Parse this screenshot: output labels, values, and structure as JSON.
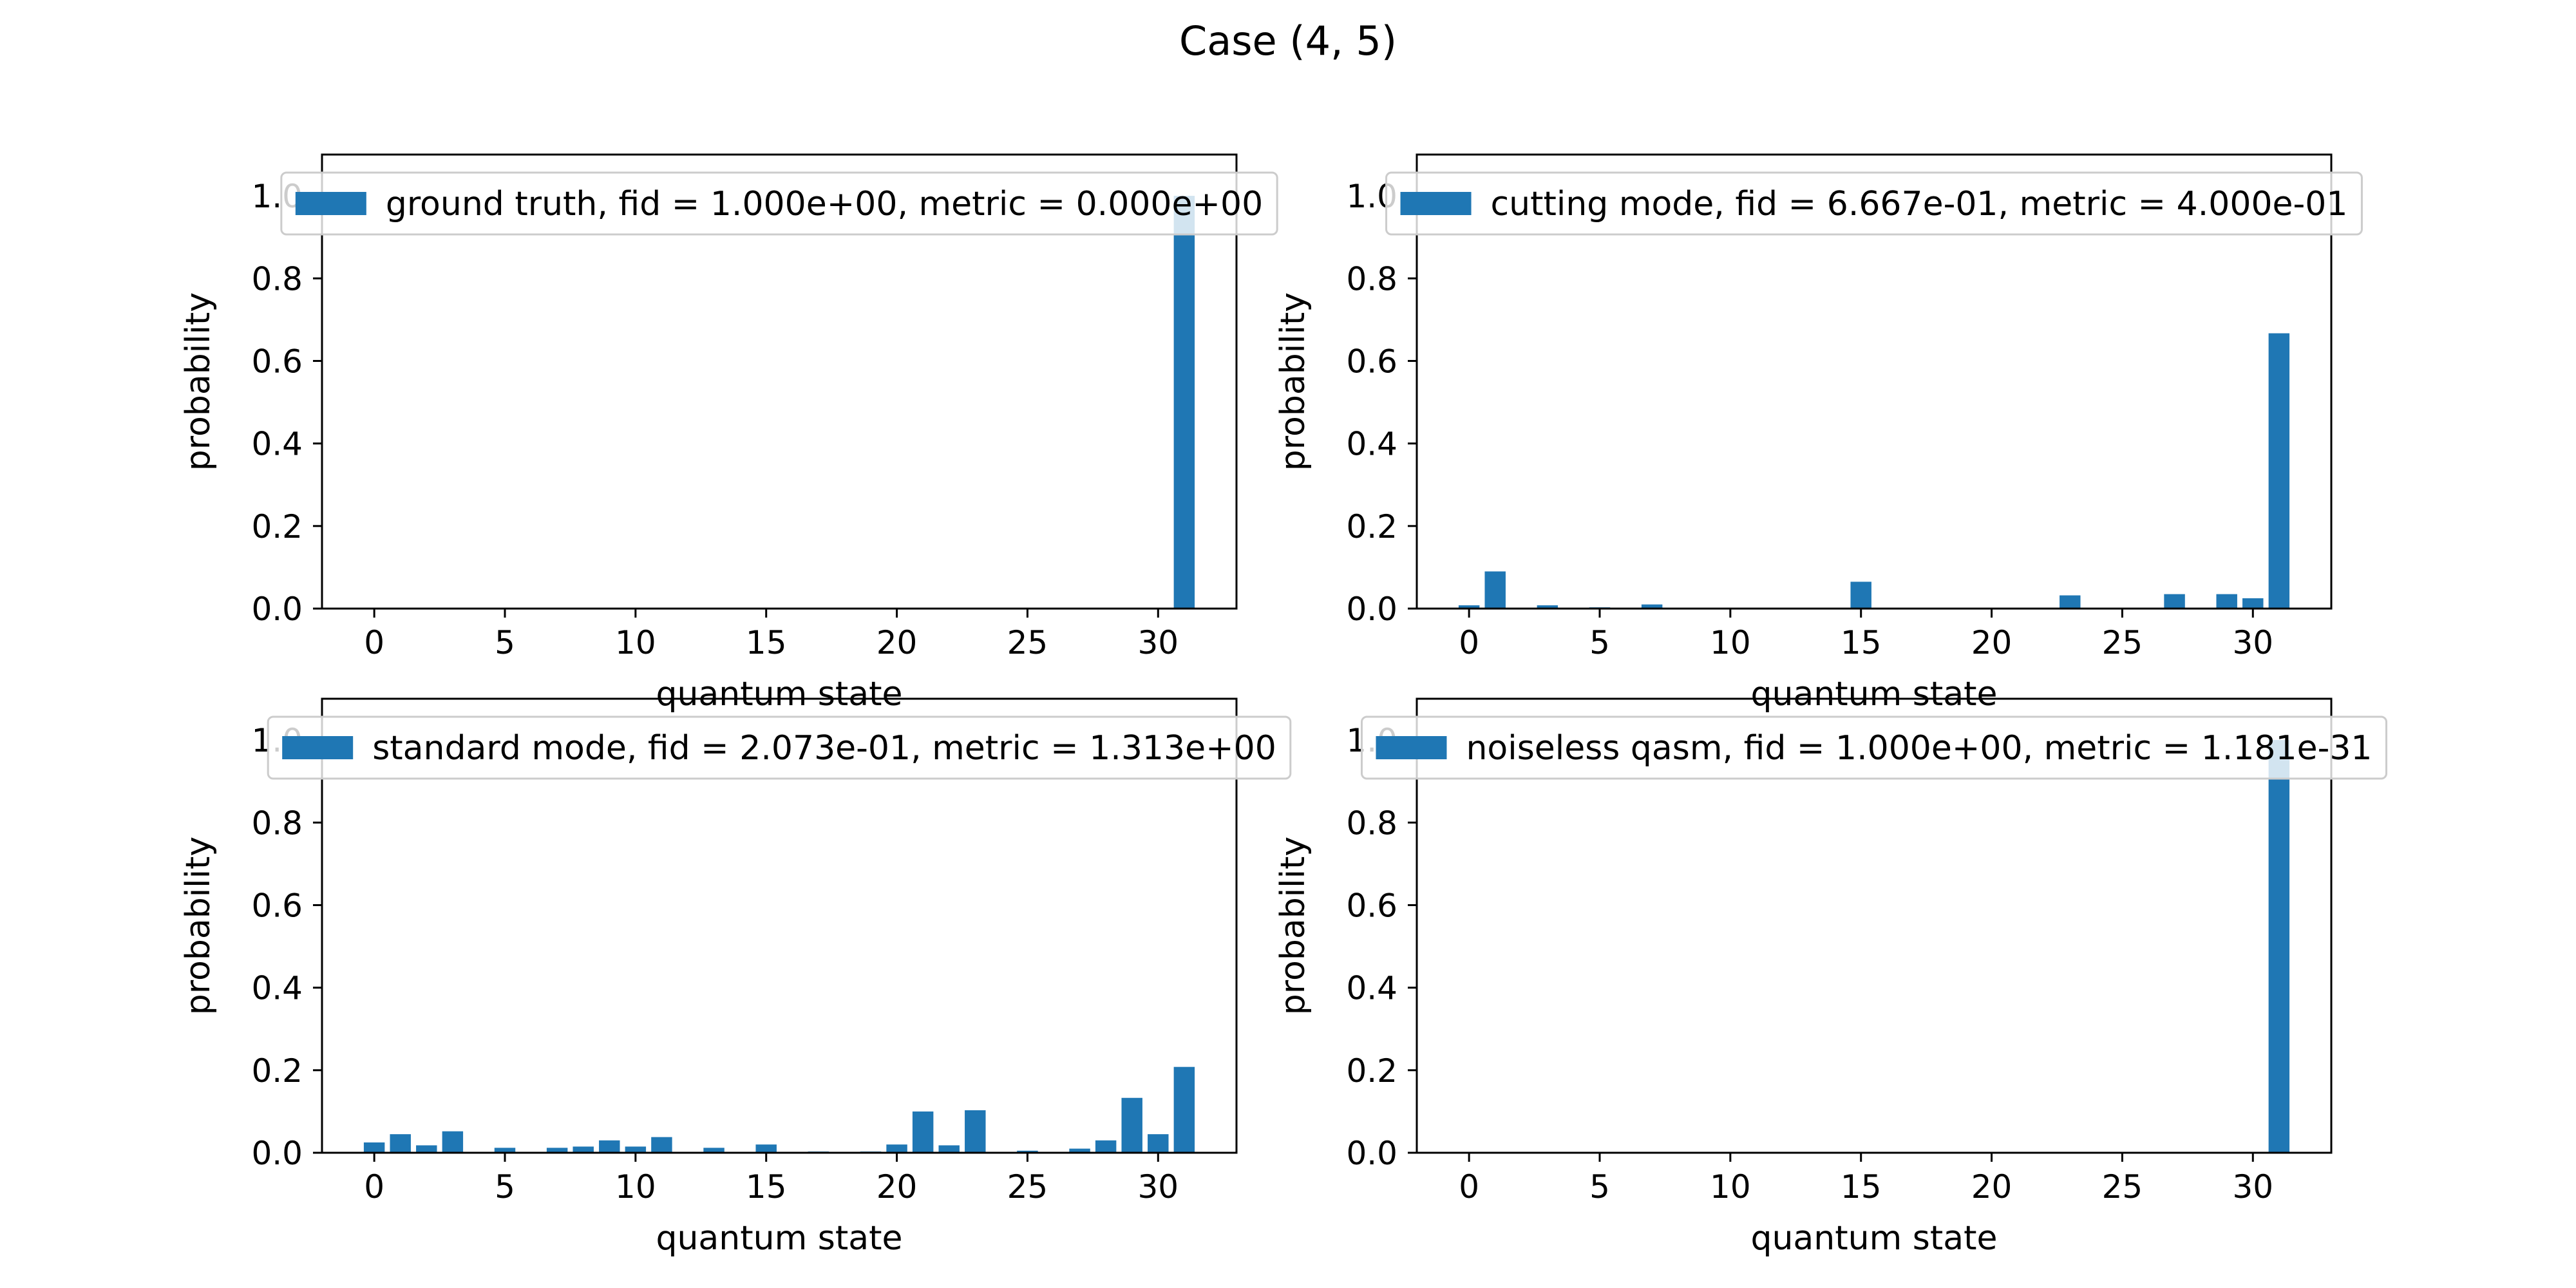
{
  "figure": {
    "title": "Case (4, 5)"
  },
  "colors": {
    "bar": "#1f77b4",
    "axis": "#000000",
    "legend_border": "#cccccc"
  },
  "chart_data": [
    {
      "type": "bar",
      "legend": "ground truth, fid = 1.000e+00, metric = 0.000e+00",
      "legend_placement": "top",
      "xlabel": "quantum state",
      "ylabel": "probability",
      "xlim": [
        -2,
        33
      ],
      "ylim": [
        0,
        1.1
      ],
      "xticks": [
        0,
        5,
        10,
        15,
        20,
        25,
        30
      ],
      "yticks": [
        0.0,
        0.2,
        0.4,
        0.6,
        0.8,
        1.0
      ],
      "x": [
        31
      ],
      "values": [
        1.0
      ]
    },
    {
      "type": "bar",
      "legend": "cutting mode, fid = 6.667e-01, metric = 4.000e-01",
      "legend_placement": "top",
      "xlabel": "quantum state",
      "ylabel": "probability",
      "xlim": [
        -2,
        33
      ],
      "ylim": [
        0,
        1.1
      ],
      "xticks": [
        0,
        5,
        10,
        15,
        20,
        25,
        30
      ],
      "yticks": [
        0.0,
        0.2,
        0.4,
        0.6,
        0.8,
        1.0
      ],
      "x": [
        0,
        1,
        3,
        5,
        7,
        15,
        23,
        27,
        29,
        30,
        31
      ],
      "values": [
        0.008,
        0.09,
        0.008,
        0.003,
        0.01,
        0.065,
        0.032,
        0.035,
        0.035,
        0.025,
        0.667
      ]
    },
    {
      "type": "bar",
      "legend": "standard mode, fid = 2.073e-01, metric = 1.313e+00",
      "legend_placement": "top",
      "xlabel": "quantum state",
      "ylabel": "probability",
      "xlim": [
        -2,
        33
      ],
      "ylim": [
        0,
        1.1
      ],
      "xticks": [
        0,
        5,
        10,
        15,
        20,
        25,
        30
      ],
      "yticks": [
        0.0,
        0.2,
        0.4,
        0.6,
        0.8,
        1.0
      ],
      "x": [
        0,
        1,
        2,
        3,
        5,
        7,
        8,
        9,
        10,
        11,
        13,
        15,
        17,
        19,
        20,
        21,
        22,
        23,
        25,
        27,
        28,
        29,
        30,
        31
      ],
      "values": [
        0.025,
        0.045,
        0.018,
        0.052,
        0.012,
        0.012,
        0.015,
        0.03,
        0.015,
        0.038,
        0.012,
        0.02,
        0.003,
        0.003,
        0.02,
        0.1,
        0.018,
        0.103,
        0.005,
        0.01,
        0.03,
        0.133,
        0.045,
        0.208
      ]
    },
    {
      "type": "bar",
      "legend": "noiseless qasm, fid = 1.000e+00, metric = 1.181e-31",
      "legend_placement": "top",
      "xlabel": "quantum state",
      "ylabel": "probability",
      "xlim": [
        -2,
        33
      ],
      "ylim": [
        0,
        1.1
      ],
      "xticks": [
        0,
        5,
        10,
        15,
        20,
        25,
        30
      ],
      "yticks": [
        0.0,
        0.2,
        0.4,
        0.6,
        0.8,
        1.0
      ],
      "x": [
        31
      ],
      "values": [
        1.0
      ]
    }
  ]
}
